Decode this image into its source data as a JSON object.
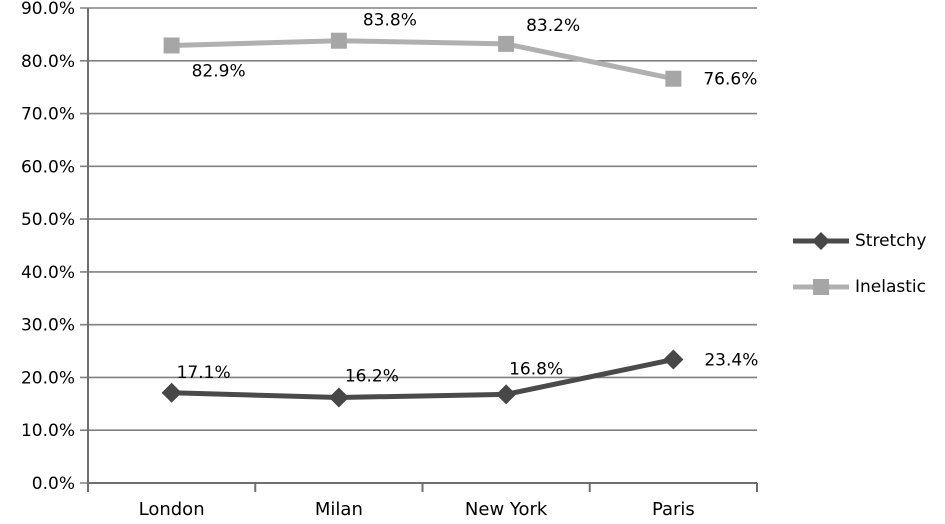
{
  "chart_data": {
    "type": "line",
    "title": "",
    "xlabel": "",
    "ylabel": "",
    "categories": [
      "London",
      "Milan",
      "New York",
      "Paris"
    ],
    "series": [
      {
        "name": "Stretchy",
        "marker": "diamond",
        "line_color": "#4a4a4a",
        "marker_color": "#474747",
        "values": [
          17.1,
          16.2,
          16.8,
          23.4
        ],
        "data_labels": [
          "17.1%",
          "16.2%",
          "16.8%",
          "23.4%"
        ],
        "label_offsets": [
          [
            32,
            -21
          ],
          [
            33,
            -22
          ],
          [
            30,
            -26
          ],
          [
            58,
            0
          ]
        ]
      },
      {
        "name": "Inelastic",
        "marker": "square",
        "line_color": "#b0b0b0",
        "marker_color": "#a6a6a6",
        "values": [
          82.9,
          83.8,
          83.2,
          76.6
        ],
        "data_labels": [
          "82.9%",
          "83.8%",
          "83.2%",
          "76.6%"
        ],
        "label_offsets": [
          [
            47,
            25
          ],
          [
            51,
            -21
          ],
          [
            47,
            -19
          ],
          [
            57,
            0
          ]
        ]
      }
    ],
    "ylim": [
      0,
      90
    ],
    "ytick_step": 10,
    "ytick_labels": [
      "0.0%",
      "10.0%",
      "20.0%",
      "30.0%",
      "40.0%",
      "50.0%",
      "60.0%",
      "70.0%",
      "80.0%",
      "90.0%"
    ],
    "grid": true,
    "legend_position": "right",
    "colors": {
      "gridline": "#808080",
      "axis": "#6e6e6e",
      "text": "#000000",
      "background": "#ffffff"
    }
  }
}
